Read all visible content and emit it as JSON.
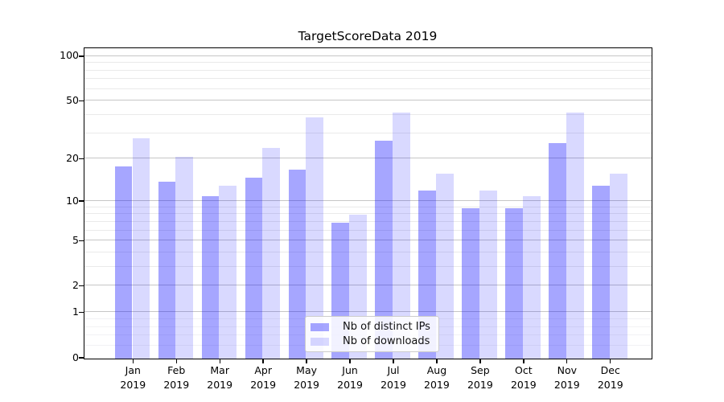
{
  "figure": {
    "background": "#ffffff"
  },
  "chart_data": {
    "type": "bar",
    "title": "TargetScoreData 2019",
    "categories": [
      "Jan 2019",
      "Feb 2019",
      "Mar 2019",
      "Apr 2019",
      "May 2019",
      "Jun 2019",
      "Jul 2019",
      "Aug 2019",
      "Sep 2019",
      "Oct 2019",
      "Nov 2019",
      "Dec 2019"
    ],
    "series": [
      {
        "name": "Nb of distinct IPs",
        "color": "rgba(0,0,255,0.35)",
        "solid_color": "#a6a6fa",
        "values": [
          18,
          14,
          11,
          15,
          17,
          7,
          27,
          12,
          9,
          9,
          26,
          13
        ]
      },
      {
        "name": "Nb of downloads",
        "color": "rgba(0,0,255,0.15)",
        "solid_color": "#d9d9fc",
        "values": [
          28,
          21,
          13,
          24,
          39,
          8,
          42,
          16,
          12,
          11,
          42,
          16
        ]
      }
    ],
    "xlabel": "",
    "ylabel": "",
    "yscale": "symlog-like (position proportional to log10(value+1))",
    "y_major_ticks": [
      0,
      1,
      2,
      5,
      10,
      20,
      50,
      100
    ],
    "y_minor_ticks": [
      0.2,
      0.4,
      0.6,
      0.8,
      3,
      4,
      6,
      7,
      8,
      9,
      30,
      40,
      60,
      70,
      80,
      90
    ],
    "ylim": [
      0,
      112
    ],
    "grid": true,
    "grid_major_color": "#c6c6c6",
    "grid_minor_color": "#eaeaea",
    "legend_position": "inside lower center",
    "axis_color": "#000000"
  }
}
